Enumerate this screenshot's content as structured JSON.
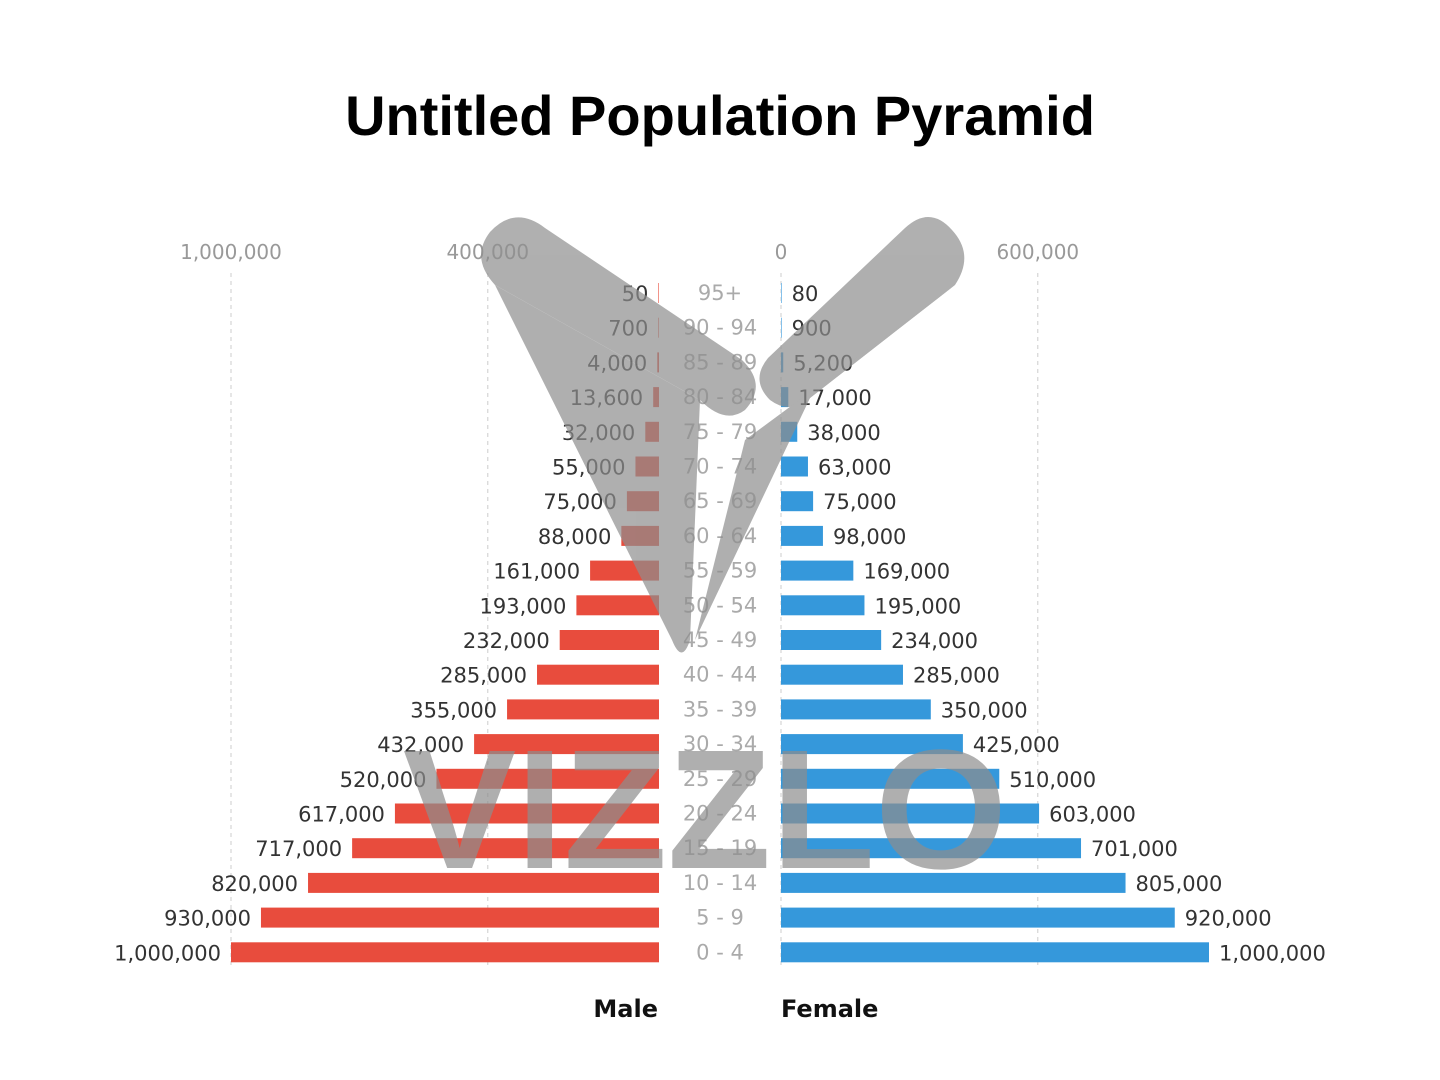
{
  "chart_data": {
    "type": "bar",
    "subtype": "population-pyramid",
    "title": "Untitled Population Pyramid",
    "categories": [
      "95+",
      "90 - 94",
      "85 - 89",
      "80 - 84",
      "75 - 79",
      "70 - 74",
      "65 - 69",
      "60 - 64",
      "55 - 59",
      "50 - 54",
      "45 - 49",
      "40 - 44",
      "35 - 39",
      "30 - 34",
      "25 - 29",
      "20 - 24",
      "15 - 19",
      "10 - 14",
      "5 - 9",
      "0 - 4"
    ],
    "series": [
      {
        "name": "Male",
        "values": [
          50,
          700,
          4000,
          13600,
          32000,
          55000,
          75000,
          88000,
          161000,
          193000,
          232000,
          285000,
          355000,
          432000,
          520000,
          617000,
          717000,
          820000,
          930000,
          1000000
        ],
        "labels": [
          "50",
          "700",
          "4,000",
          "13,600",
          "32,000",
          "55,000",
          "75,000",
          "88,000",
          "161,000",
          "193,000",
          "232,000",
          "285,000",
          "355,000",
          "432,000",
          "520,000",
          "617,000",
          "717,000",
          "820,000",
          "930,000",
          "1,000,000"
        ]
      },
      {
        "name": "Female",
        "values": [
          80,
          900,
          5200,
          17000,
          38000,
          63000,
          75000,
          98000,
          169000,
          195000,
          234000,
          285000,
          350000,
          425000,
          510000,
          603000,
          701000,
          805000,
          920000,
          1000000
        ],
        "labels": [
          "80",
          "900",
          "5,200",
          "17,000",
          "38,000",
          "63,000",
          "75,000",
          "98,000",
          "169,000",
          "195,000",
          "234,000",
          "285,000",
          "350,000",
          "425,000",
          "510,000",
          "603,000",
          "701,000",
          "805,000",
          "920,000",
          "1,000,000"
        ]
      }
    ],
    "male_axis": {
      "ticks": [
        1000000,
        400000
      ],
      "tick_labels": [
        "1,000,000",
        "400,000"
      ],
      "xlim": [
        0,
        1000000
      ]
    },
    "female_axis": {
      "ticks": [
        0,
        600000
      ],
      "tick_labels": [
        "0",
        "600,000"
      ],
      "xlim": [
        0,
        1000000
      ]
    },
    "legend": [
      "Male",
      "Female"
    ],
    "legend_position": "bottom",
    "grid": true,
    "watermark": "VIZZLO",
    "colors": {
      "male": "#e84c3d",
      "female": "#3598db",
      "value_text": "#333333",
      "tick_text": "#999999",
      "age_text": "#aaaaaa",
      "grid": "#cccccc",
      "title": "#111111",
      "watermark": "#8e8e8e"
    }
  }
}
